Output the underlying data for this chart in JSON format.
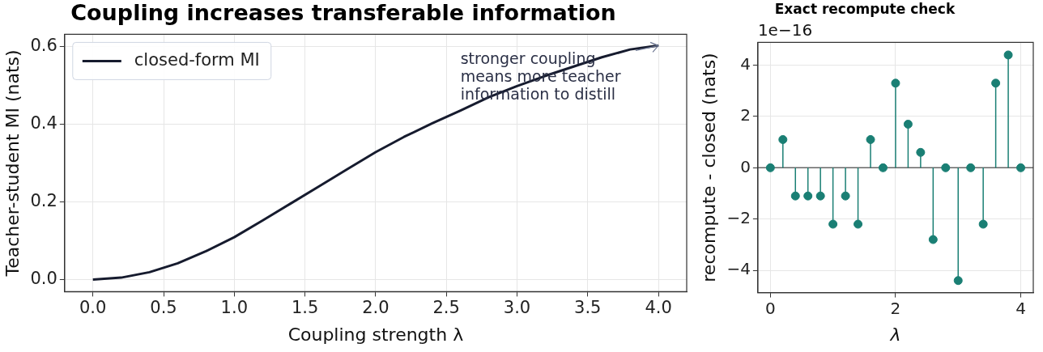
{
  "chart_data": [
    {
      "type": "line",
      "title": "Coupling increases transferable information",
      "xlabel": "Coupling strength λ",
      "ylabel": "Teacher-student MI (nats)",
      "x": [
        0,
        0.2,
        0.4,
        0.6,
        0.8,
        1.0,
        1.2,
        1.4,
        1.6,
        1.8,
        2.0,
        2.2,
        2.4,
        2.6,
        2.8,
        3.0,
        3.2,
        3.4,
        3.6,
        3.8,
        4.0
      ],
      "series": [
        {
          "name": "closed-form MI",
          "color": "#161b2e",
          "values": [
            0,
            0.005,
            0.019,
            0.042,
            0.073,
            0.109,
            0.152,
            0.196,
            0.24,
            0.284,
            0.328,
            0.367,
            0.402,
            0.435,
            0.469,
            0.498,
            0.524,
            0.548,
            0.572,
            0.592,
            0.602
          ]
        }
      ],
      "xlim": [
        -0.2,
        4.2
      ],
      "xticks": [
        {
          "value": 0,
          "label": "0.0"
        },
        {
          "value": 0.5,
          "label": "0.5"
        },
        {
          "value": 1,
          "label": "1.0"
        },
        {
          "value": 1.5,
          "label": "1.5"
        },
        {
          "value": 2,
          "label": "2.0"
        },
        {
          "value": 2.5,
          "label": "2.5"
        },
        {
          "value": 3,
          "label": "3.0"
        },
        {
          "value": 3.5,
          "label": "3.5"
        },
        {
          "value": 4,
          "label": "4.0"
        }
      ],
      "ylim": [
        -0.031,
        0.631
      ],
      "yticks": [
        {
          "value": 0,
          "label": "0.0"
        },
        {
          "value": 0.2,
          "label": "0.2"
        },
        {
          "value": 0.4,
          "label": "0.4"
        },
        {
          "value": 0.6,
          "label": "0.6"
        }
      ],
      "grid": true,
      "legend": "top left",
      "marker": "none",
      "line_style": "solid",
      "annotations": [
        {
          "text": "stronger coupling\nmeans more teacher\ninformation to distill",
          "x": 4.0,
          "y": 0.602
        }
      ]
    },
    {
      "type": "lollipop",
      "title": "Exact recompute check",
      "xlabel": "λ",
      "ylabel": "recompute - closed (nats)",
      "x": [
        0,
        0.2,
        0.4,
        0.6,
        0.8,
        1.0,
        1.2,
        1.4,
        1.6,
        1.8,
        2.0,
        2.2,
        2.4,
        2.6,
        2.8,
        3.0,
        3.2,
        3.4,
        3.6,
        3.8,
        4.0
      ],
      "series": [
        {
          "color": "#1a7f74",
          "values": [
            0,
            1.1,
            -1.1,
            -1.1,
            -1.1,
            -2.2,
            -1.1,
            -2.2,
            1.1,
            0,
            3.3,
            1.7,
            0.6,
            -2.8,
            0,
            -4.4,
            0,
            -2.2,
            3.3,
            4.4,
            0
          ]
        }
      ],
      "xlim": [
        -0.2,
        4.2
      ],
      "xticks": [
        0,
        2,
        4
      ],
      "ylim": [
        -4.87,
        4.89
      ],
      "yticks": [
        {
          "value": -4,
          "label": "−4"
        },
        {
          "value": -2,
          "label": "−2"
        },
        0,
        2,
        4
      ],
      "grid": true,
      "marker": "circle",
      "annotations": [
        "1e−16"
      ]
    }
  ]
}
